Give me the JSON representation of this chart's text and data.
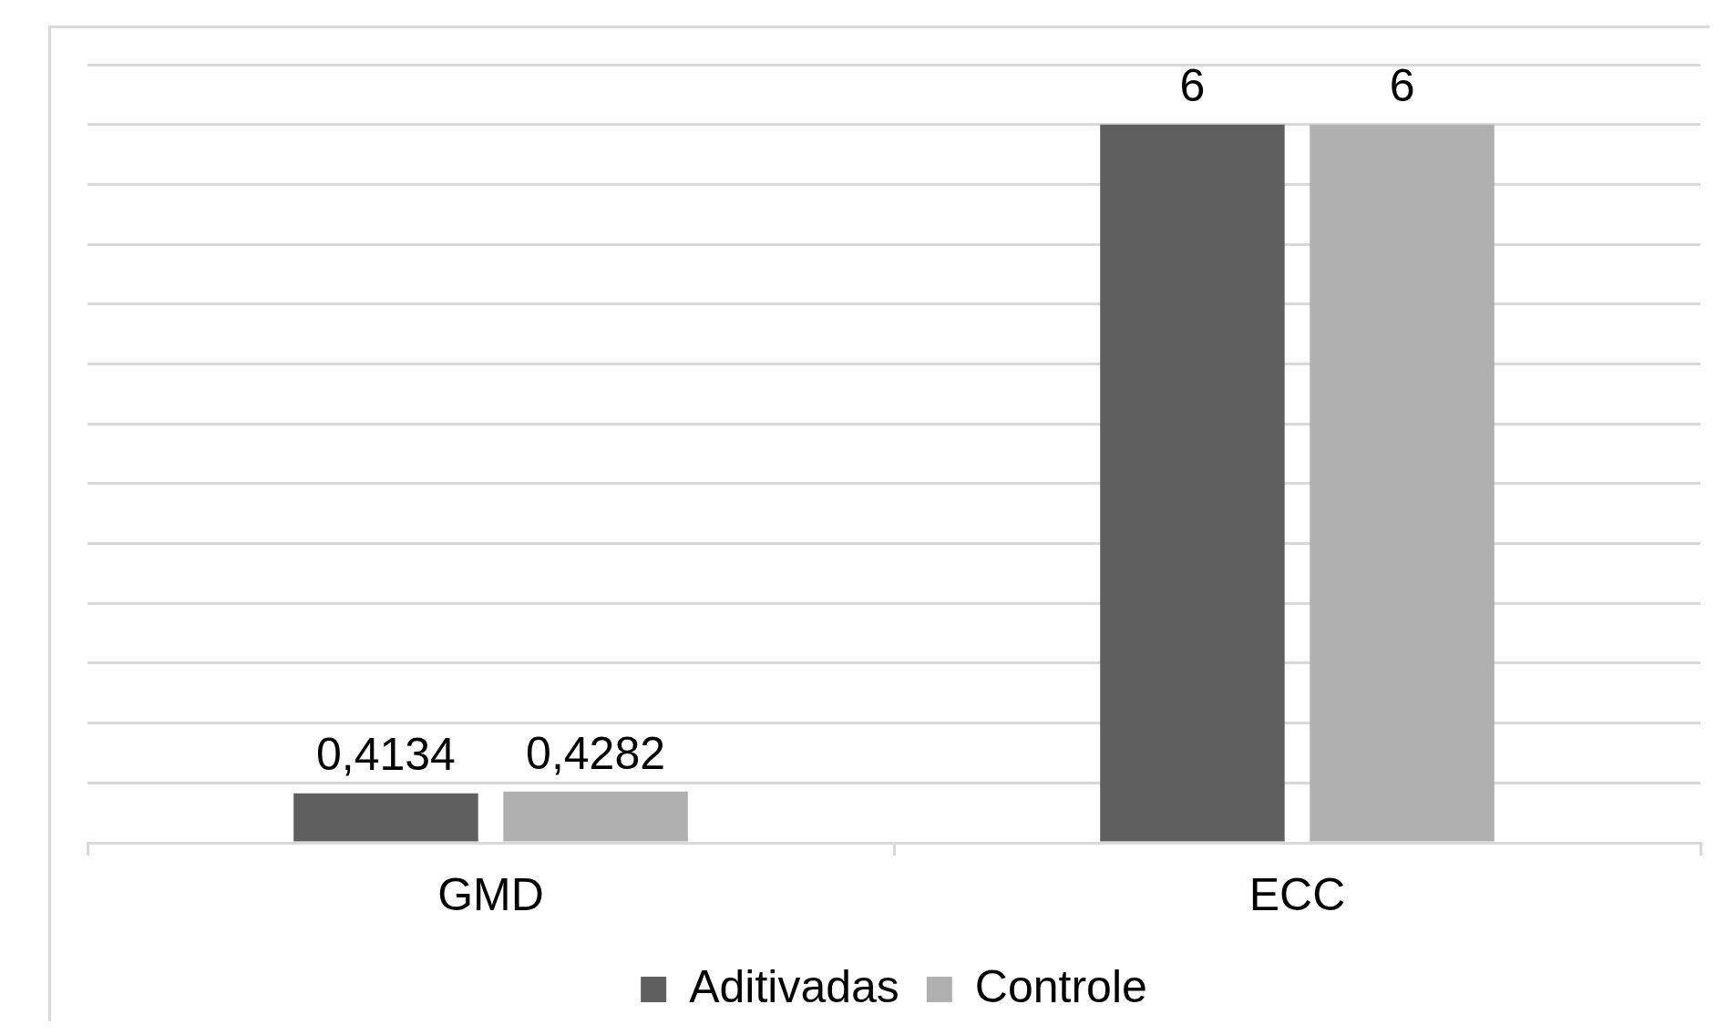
{
  "chart_data": {
    "type": "bar",
    "categories": [
      "GMD",
      "ECC"
    ],
    "series": [
      {
        "name": "Aditivadas",
        "color": "#5f5f5f",
        "values": [
          0.4134,
          6
        ],
        "value_labels": [
          "0,4134",
          "6"
        ]
      },
      {
        "name": "Controle",
        "color": "#b0b0b0",
        "values": [
          0.4282,
          6
        ],
        "value_labels": [
          "0,4282",
          "6"
        ]
      }
    ],
    "ylim": [
      0,
      6.5
    ],
    "yticks": [
      {
        "value": 0,
        "label": null
      },
      {
        "value": 0.5,
        "label": null
      },
      {
        "value": 1,
        "label": null
      },
      {
        "value": 1.5,
        "label": null
      },
      {
        "value": 2,
        "label": null
      },
      {
        "value": 2.5,
        "label": null
      },
      {
        "value": 3,
        "label": null
      },
      {
        "value": 3.5,
        "label": null
      },
      {
        "value": 4,
        "label": null
      },
      {
        "value": 4.5,
        "label": null
      },
      {
        "value": 5,
        "label": null
      },
      {
        "value": 5.5,
        "label": null
      },
      {
        "value": 6,
        "label": null
      },
      {
        "value": 6.5,
        "label": null
      }
    ],
    "tick_labels": "x",
    "grid": "y",
    "legend": "bottom"
  }
}
